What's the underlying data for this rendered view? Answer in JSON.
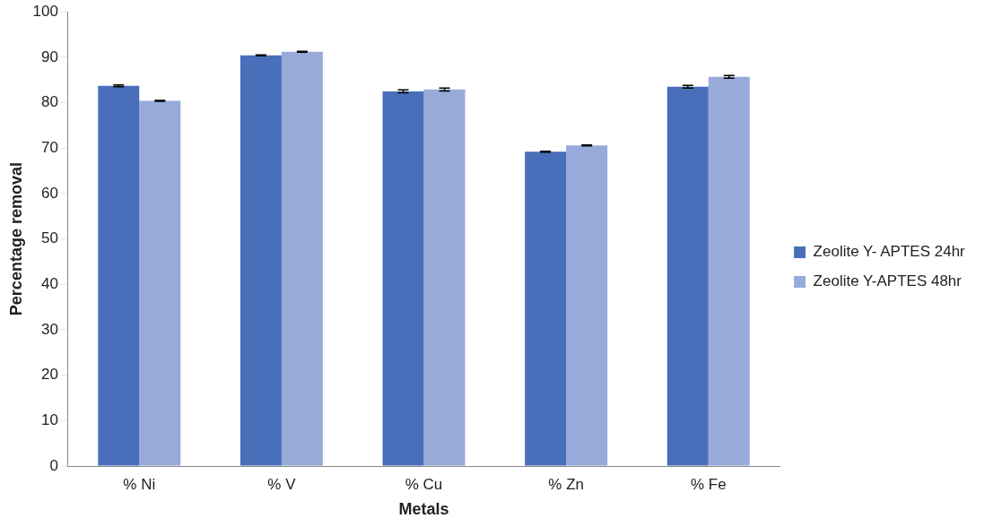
{
  "chart_data": {
    "type": "bar",
    "xlabel": "Metals",
    "ylabel": "Percentage removal",
    "categories": [
      "% Ni",
      "% V",
      "% Cu",
      "% Zn",
      "% Fe"
    ],
    "series": [
      {
        "name": "Zeolite Y- APTES 24hr",
        "color": "#4a6fba",
        "values": [
          83.7,
          90.4,
          82.5,
          69.2,
          83.5
        ],
        "errors": [
          0.2,
          0.1,
          0.3,
          0.1,
          0.3
        ]
      },
      {
        "name": "Zeolite Y-APTES 48hr",
        "color": "#97aad9",
        "values": [
          80.4,
          91.2,
          82.9,
          70.6,
          85.7
        ],
        "errors": [
          0.1,
          0.1,
          0.3,
          0.1,
          0.3
        ]
      }
    ],
    "ylim": [
      0,
      100
    ],
    "yticks": [
      0,
      10,
      20,
      30,
      40,
      50,
      60,
      70,
      80,
      90,
      100
    ],
    "grid": false,
    "legend": "right"
  }
}
